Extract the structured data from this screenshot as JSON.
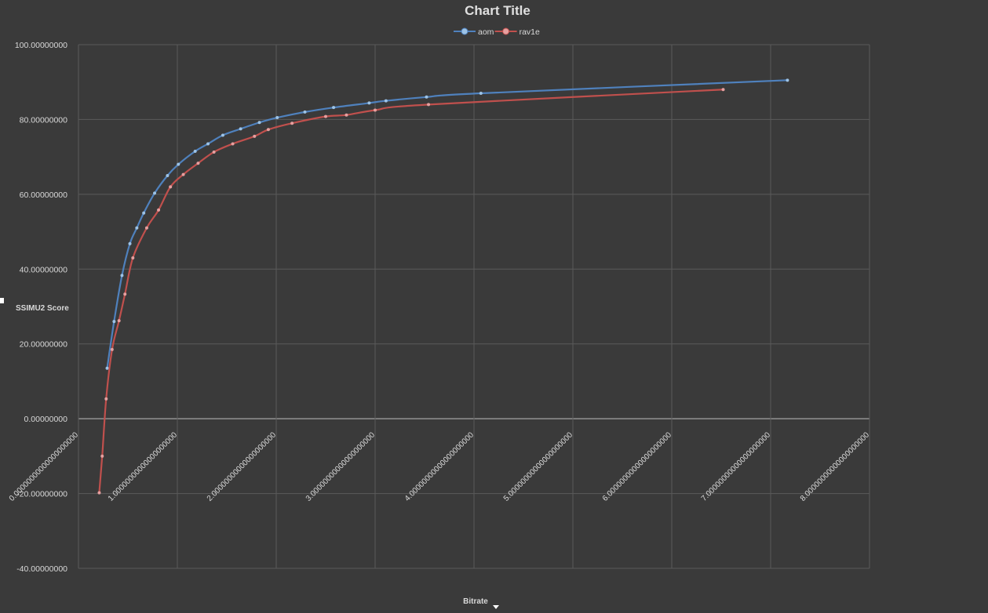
{
  "chart_data": {
    "type": "line",
    "title": "Chart Title",
    "xlabel": "Bitrate",
    "ylabel": "SSIMU2 Score",
    "xlim": [
      0,
      8
    ],
    "ylim": [
      -40,
      100
    ],
    "x_ticks": [
      0,
      1,
      2,
      3,
      4,
      5,
      6,
      7,
      8
    ],
    "y_ticks": [
      -40,
      -20,
      0,
      20,
      40,
      60,
      80,
      100
    ],
    "x_tick_labels": [
      "0.00000000000000000000",
      "1.00000000000000000000",
      "2.00000000000000000000",
      "3.00000000000000000000",
      "4.00000000000000000000",
      "5.00000000000000000000",
      "6.00000000000000000000",
      "7.00000000000000000000",
      "8.00000000000000000000"
    ],
    "y_tick_labels": [
      "-40.00000000",
      "-20.00000000",
      "0.00000000",
      "20.00000000",
      "40.00000000",
      "60.00000000",
      "80.00000000",
      "100.00000000"
    ],
    "grid": true,
    "legend_position": "top",
    "colors": {
      "background": "#3a3a3a",
      "grid": "#5a5a5a",
      "axis": "#bfbfbf",
      "text": "#d9d9d9",
      "title": "#e0e0e0"
    },
    "series": [
      {
        "name": "aom",
        "color": "#4f81bd",
        "marker_color": "#9dc3e6",
        "points": [
          [
            0.29,
            13.5
          ],
          [
            0.36,
            26.0
          ],
          [
            0.44,
            38.3
          ],
          [
            0.52,
            46.8
          ],
          [
            0.59,
            51.0
          ],
          [
            0.66,
            55.0
          ],
          [
            0.77,
            60.3
          ],
          [
            0.9,
            65.0
          ],
          [
            1.01,
            68.0
          ],
          [
            1.18,
            71.5
          ],
          [
            1.31,
            73.5
          ],
          [
            1.46,
            75.8
          ],
          [
            1.64,
            77.5
          ],
          [
            1.83,
            79.2
          ],
          [
            2.01,
            80.5
          ],
          [
            2.29,
            82.0
          ],
          [
            2.58,
            83.2
          ],
          [
            2.94,
            84.4
          ],
          [
            3.11,
            85.0
          ],
          [
            3.52,
            86.0
          ],
          [
            4.07,
            87.0
          ],
          [
            7.17,
            90.5
          ]
        ]
      },
      {
        "name": "rav1e",
        "color": "#c0504d",
        "marker_color": "#e6a0a0",
        "points": [
          [
            0.21,
            -19.8
          ],
          [
            0.24,
            -10.0
          ],
          [
            0.28,
            5.3
          ],
          [
            0.34,
            18.5
          ],
          [
            0.41,
            26.2
          ],
          [
            0.47,
            33.3
          ],
          [
            0.55,
            43.0
          ],
          [
            0.69,
            51.0
          ],
          [
            0.81,
            55.8
          ],
          [
            0.93,
            62.0
          ],
          [
            1.06,
            65.3
          ],
          [
            1.21,
            68.3
          ],
          [
            1.37,
            71.3
          ],
          [
            1.56,
            73.5
          ],
          [
            1.78,
            75.5
          ],
          [
            1.92,
            77.3
          ],
          [
            2.16,
            79.0
          ],
          [
            2.5,
            80.8
          ],
          [
            2.71,
            81.2
          ],
          [
            3.0,
            82.5
          ],
          [
            3.54,
            84.0
          ],
          [
            6.52,
            88.0
          ]
        ]
      }
    ]
  }
}
